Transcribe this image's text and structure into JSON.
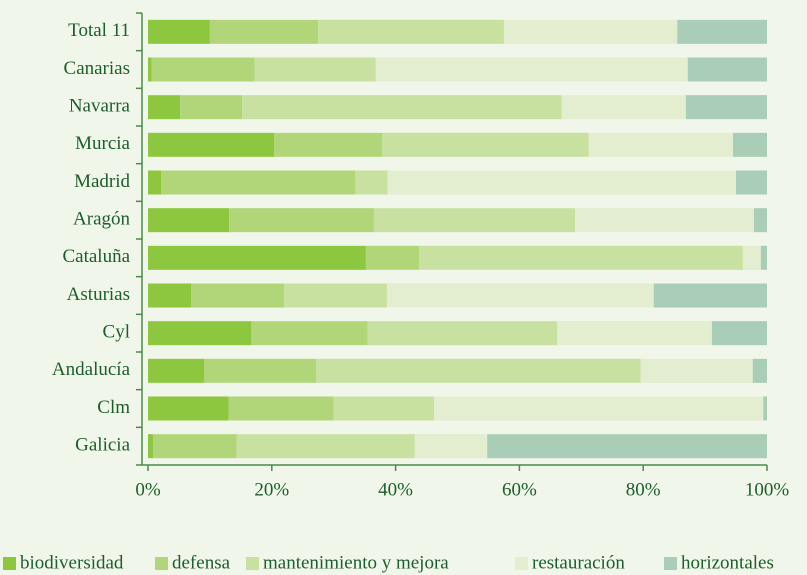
{
  "chart_data": {
    "type": "stacked_bar_horizontal",
    "categories": [
      "Total 11",
      "Canarias",
      "Navarra",
      "Murcia",
      "Madrid",
      "Aragón",
      "Cataluña",
      "Asturias",
      "Cyl",
      "Andalucía",
      "Clm",
      "Galicia"
    ],
    "series": [
      {
        "name": "biodiversidad",
        "color": "#8dc63f",
        "values": [
          10,
          0.6,
          5.2,
          20.4,
          2.1,
          13.1,
          35.2,
          7,
          16.7,
          9.1,
          13,
          0.8
        ]
      },
      {
        "name": "defensa",
        "color": "#b1d67a",
        "values": [
          17.5,
          16.6,
          10,
          17.4,
          31.4,
          23.4,
          8.6,
          15,
          18.8,
          18.1,
          17,
          13.5
        ]
      },
      {
        "name": "mantenimiento y mejora",
        "color": "#c8e0a0",
        "values": [
          30,
          19.6,
          51.6,
          33.4,
          5.2,
          32.5,
          52.3,
          16.6,
          30.6,
          52.4,
          16.2,
          28.8
        ]
      },
      {
        "name": "restauración",
        "color": "#e2eecf",
        "values": [
          28,
          50.4,
          20.1,
          23.3,
          56.3,
          28.9,
          2.9,
          43.1,
          25,
          18.1,
          53.2,
          11.7
        ]
      },
      {
        "name": "horizontales",
        "color": "#a9cdb6",
        "values": [
          14.5,
          12.8,
          13.1,
          5.5,
          5,
          2.1,
          1,
          18.3,
          8.9,
          2.3,
          0.6,
          45.2
        ]
      }
    ],
    "xlim": [
      0,
      100
    ],
    "xticks": [
      {
        "value": 0,
        "label": "0%"
      },
      {
        "value": 20,
        "label": "20%"
      },
      {
        "value": 40,
        "label": "40%"
      },
      {
        "value": 60,
        "label": "60%"
      },
      {
        "value": 80,
        "label": "80%"
      },
      {
        "value": 100,
        "label": "100%"
      }
    ]
  }
}
